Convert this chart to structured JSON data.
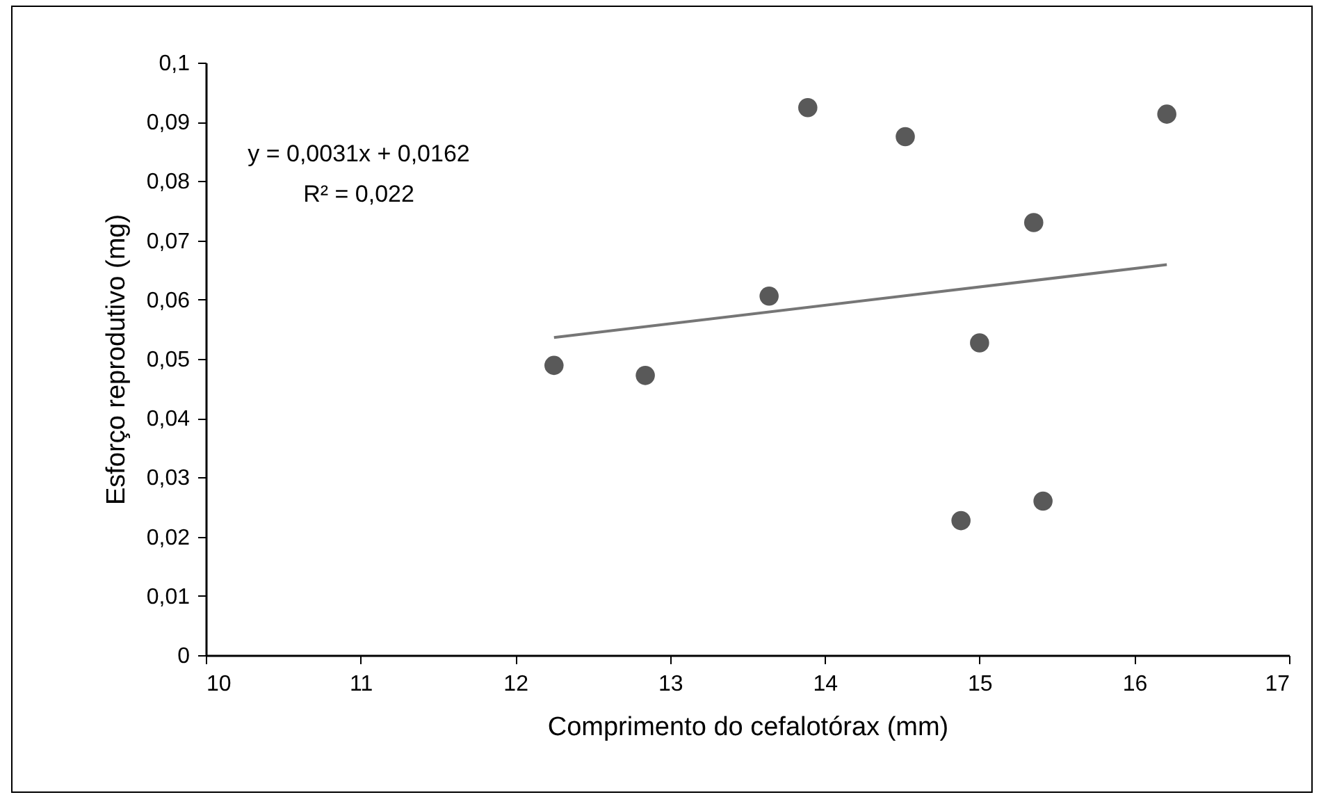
{
  "chart_data": {
    "type": "scatter",
    "xlabel": "Comprimento do cefalotórax (mm)",
    "ylabel": "Esforço reprodutivo (mg)",
    "annotations": [
      "y = 0,0031x + 0,0162",
      "R² = 0,022"
    ],
    "grid": false,
    "xlim": [
      10,
      17
    ],
    "xticks": [
      10,
      11,
      12,
      13,
      14,
      15,
      16,
      17
    ],
    "ylim": [
      0,
      0.1
    ],
    "yticks": [
      {
        "value": 0,
        "label": "0"
      },
      {
        "value": 0.01,
        "label": "0,01"
      },
      {
        "value": 0.02,
        "label": "0,02"
      },
      {
        "value": 0.03,
        "label": "0,03"
      },
      {
        "value": 0.04,
        "label": "0,04"
      },
      {
        "value": 0.05,
        "label": "0,05"
      },
      {
        "value": 0.06,
        "label": "0,06"
      },
      {
        "value": 0.07,
        "label": "0,07"
      },
      {
        "value": 0.08,
        "label": "0,08"
      },
      {
        "value": 0.09,
        "label": "0,09"
      },
      {
        "value": 0.1,
        "label": "0,1"
      }
    ],
    "series": [
      {
        "marker": "circle",
        "color": "#595959",
        "x": [
          12.25,
          12.84,
          13.64,
          13.89,
          14.52,
          14.88,
          15.0,
          15.35,
          15.41,
          16.21
        ],
        "values": [
          0.0489,
          0.0472,
          0.0606,
          0.0924,
          0.0875,
          0.0227,
          0.0527,
          0.073,
          0.026,
          0.0913
        ]
      },
      {
        "type": "line",
        "color": "#767676",
        "x": [
          12.25,
          16.21
        ],
        "values": [
          0.0536,
          0.0659
        ]
      }
    ]
  }
}
